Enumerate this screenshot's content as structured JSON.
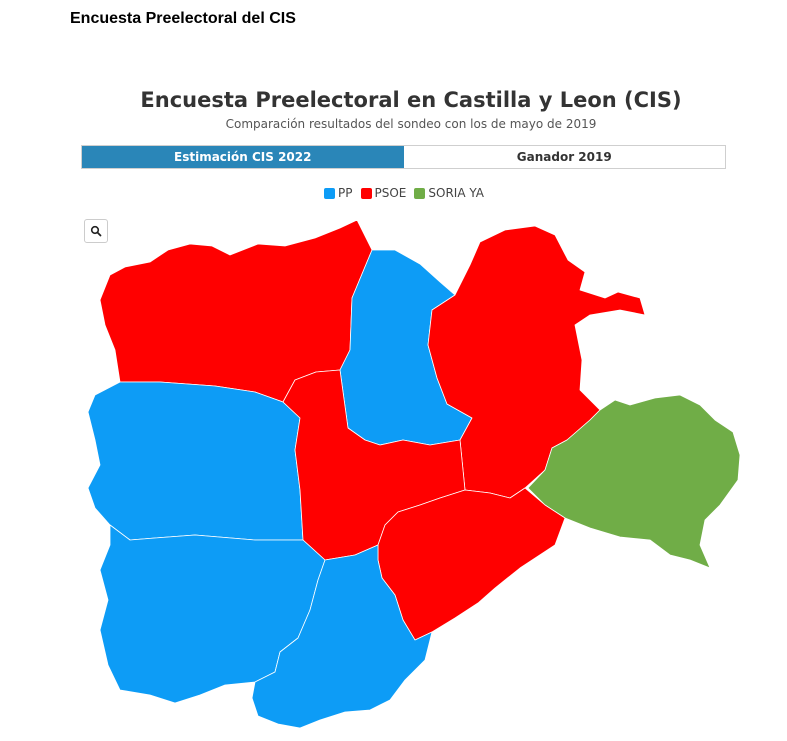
{
  "page": {
    "heading": "Encuesta Preelectoral del CIS"
  },
  "chart": {
    "title": "Encuesta Preelectoral en Castilla y Leon (CIS)",
    "subtitle": "Comparación resultados del sondeo con los de mayo de 2019"
  },
  "tabs": [
    {
      "label": "Estimación CIS 2022",
      "active": true
    },
    {
      "label": "Ganador 2019",
      "active": false
    }
  ],
  "legend": [
    {
      "label": "PP",
      "color": "#0d9cf6"
    },
    {
      "label": "PSOE",
      "color": "#ff0000"
    },
    {
      "label": "SORIA YA",
      "color": "#70ad47"
    }
  ],
  "zoom": {
    "icon": "search-icon"
  },
  "regions": [
    {
      "name": "León",
      "winner": "PSOE"
    },
    {
      "name": "Palencia",
      "winner": "PP"
    },
    {
      "name": "Burgos",
      "winner": "PSOE"
    },
    {
      "name": "Zamora",
      "winner": "PP"
    },
    {
      "name": "Valladolid",
      "winner": "PSOE"
    },
    {
      "name": "Soria",
      "winner": "SORIA YA"
    },
    {
      "name": "Segovia",
      "winner": "PSOE"
    },
    {
      "name": "Salamanca",
      "winner": "PP"
    },
    {
      "name": "Ávila",
      "winner": "PP"
    }
  ]
}
